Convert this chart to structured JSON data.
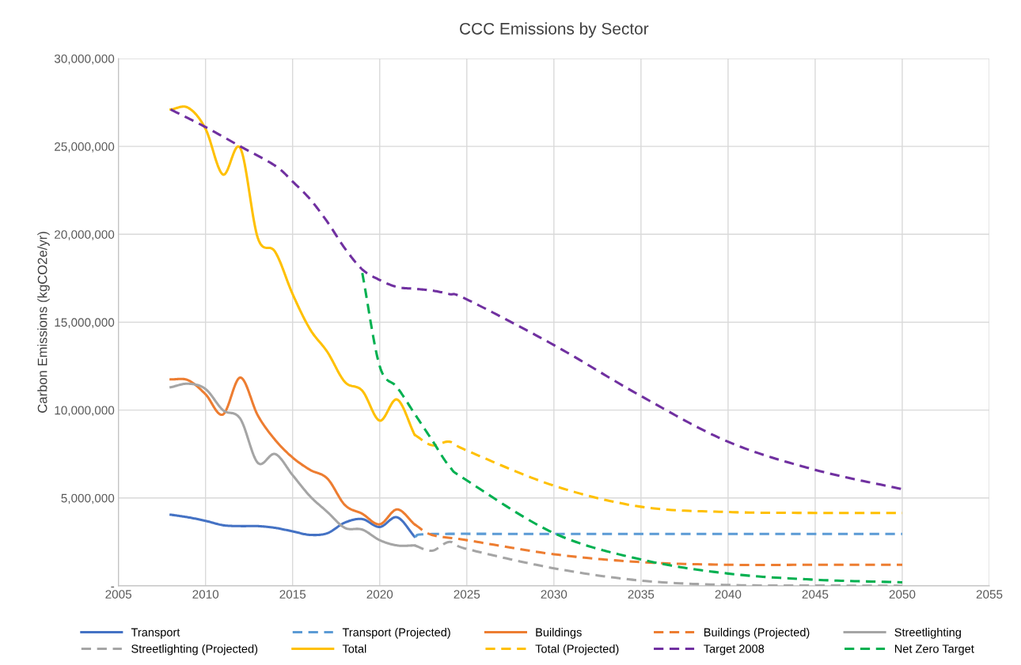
{
  "chart_data": {
    "type": "line",
    "title": "CCC Emissions by Sector",
    "ylabel": "Carbon Emissions (kgCO2e/yr)",
    "xlim": [
      2005,
      2055
    ],
    "xticks": [
      2005,
      2010,
      2015,
      2020,
      2025,
      2030,
      2035,
      2040,
      2045,
      2050,
      2055
    ],
    "ylim": [
      0,
      30000000
    ],
    "yticks": [
      {
        "value": 0,
        "label": "-"
      },
      {
        "value": 5000000,
        "label": "5,000,000"
      },
      {
        "value": 10000000,
        "label": "10,000,000"
      },
      {
        "value": 15000000,
        "label": "15,000,000"
      },
      {
        "value": 20000000,
        "label": "20,000,000"
      },
      {
        "value": 25000000,
        "label": "25,000,000"
      },
      {
        "value": 30000000,
        "label": "30,000,000"
      }
    ],
    "grid": true,
    "legend": "bottom",
    "marker": "none",
    "series": [
      {
        "name": "Transport",
        "color": "#4472c4",
        "line_style": "solid",
        "x": [
          2008,
          2009,
          2010,
          2011,
          2012,
          2013,
          2014,
          2015,
          2016,
          2017,
          2018,
          2019,
          2020,
          2021,
          2022
        ],
        "values": [
          4050000,
          3900000,
          3700000,
          3450000,
          3400000,
          3400000,
          3300000,
          3100000,
          2900000,
          3000000,
          3600000,
          3800000,
          3350000,
          3900000,
          2800000
        ]
      },
      {
        "name": "Transport (Projected)",
        "color": "#5b9bd5",
        "line_style": "dashed",
        "x": [
          2022,
          2023,
          2030,
          2040,
          2050
        ],
        "values": [
          2800000,
          2950000,
          2950000,
          2950000,
          2950000
        ]
      },
      {
        "name": "Buildings",
        "color": "#ed7d31",
        "line_style": "solid",
        "x": [
          2008,
          2009,
          2010,
          2011,
          2012,
          2013,
          2014,
          2015,
          2016,
          2017,
          2018,
          2019,
          2020,
          2021,
          2022
        ],
        "values": [
          11750000,
          11700000,
          10900000,
          9750000,
          11850000,
          9700000,
          8300000,
          7300000,
          6600000,
          6100000,
          4600000,
          4100000,
          3500000,
          4350000,
          3500000
        ]
      },
      {
        "name": "Buildings (Projected)",
        "color": "#ed7d31",
        "line_style": "dashed",
        "x": [
          2022,
          2023,
          2025,
          2030,
          2035,
          2040,
          2045,
          2050
        ],
        "values": [
          3500000,
          2900000,
          2600000,
          1800000,
          1350000,
          1200000,
          1200000,
          1200000
        ]
      },
      {
        "name": "Streetlighting",
        "color": "#a5a5a5",
        "line_style": "solid",
        "x": [
          2008,
          2009,
          2010,
          2011,
          2012,
          2013,
          2014,
          2015,
          2016,
          2017,
          2018,
          2019,
          2020,
          2021,
          2022
        ],
        "values": [
          11300000,
          11500000,
          11200000,
          10000000,
          9500000,
          7000000,
          7500000,
          6300000,
          5100000,
          4200000,
          3300000,
          3200000,
          2600000,
          2300000,
          2300000
        ]
      },
      {
        "name": "Streetlighting (Projected)",
        "color": "#a5a5a5",
        "line_style": "dashed",
        "x": [
          2022,
          2023,
          2024,
          2025,
          2030,
          2035,
          2040,
          2045,
          2050
        ],
        "values": [
          2300000,
          2000000,
          2500000,
          2100000,
          1000000,
          300000,
          50000,
          20000,
          0
        ]
      },
      {
        "name": "Total",
        "color": "#ffc000",
        "line_style": "solid",
        "x": [
          2008,
          2009,
          2010,
          2011,
          2012,
          2013,
          2014,
          2015,
          2016,
          2017,
          2018,
          2019,
          2020,
          2021,
          2022
        ],
        "values": [
          27100000,
          27200000,
          26000000,
          23400000,
          24900000,
          19800000,
          19000000,
          16600000,
          14600000,
          13300000,
          11600000,
          11100000,
          9400000,
          10600000,
          8600000
        ]
      },
      {
        "name": "Total (Projected)",
        "color": "#ffc000",
        "line_style": "dashed",
        "x": [
          2022,
          2023,
          2024,
          2025,
          2030,
          2035,
          2040,
          2045,
          2050
        ],
        "values": [
          8600000,
          8000000,
          8200000,
          7700000,
          5700000,
          4500000,
          4200000,
          4150000,
          4150000
        ]
      },
      {
        "name": "Target 2008",
        "color": "#7030a0",
        "line_style": "dashed",
        "x": [
          2008,
          2010,
          2012,
          2014,
          2015,
          2016,
          2017,
          2018,
          2019,
          2020,
          2021,
          2022,
          2023,
          2024,
          2025,
          2030,
          2035,
          2040,
          2045,
          2050
        ],
        "values": [
          27100000,
          26100000,
          25000000,
          23900000,
          23000000,
          22000000,
          20700000,
          19200000,
          18000000,
          17400000,
          17000000,
          16900000,
          16800000,
          16600000,
          16300000,
          13700000,
          10800000,
          8200000,
          6600000,
          5500000
        ]
      },
      {
        "name": "Net Zero Target",
        "color": "#00b050",
        "line_style": "dashed",
        "x": [
          2019,
          2020,
          2021,
          2022,
          2023,
          2024,
          2025,
          2030,
          2035,
          2040,
          2045,
          2050
        ],
        "values": [
          17800000,
          12500000,
          11300000,
          9800000,
          8300000,
          6800000,
          6000000,
          3000000,
          1500000,
          700000,
          350000,
          200000
        ]
      }
    ]
  }
}
